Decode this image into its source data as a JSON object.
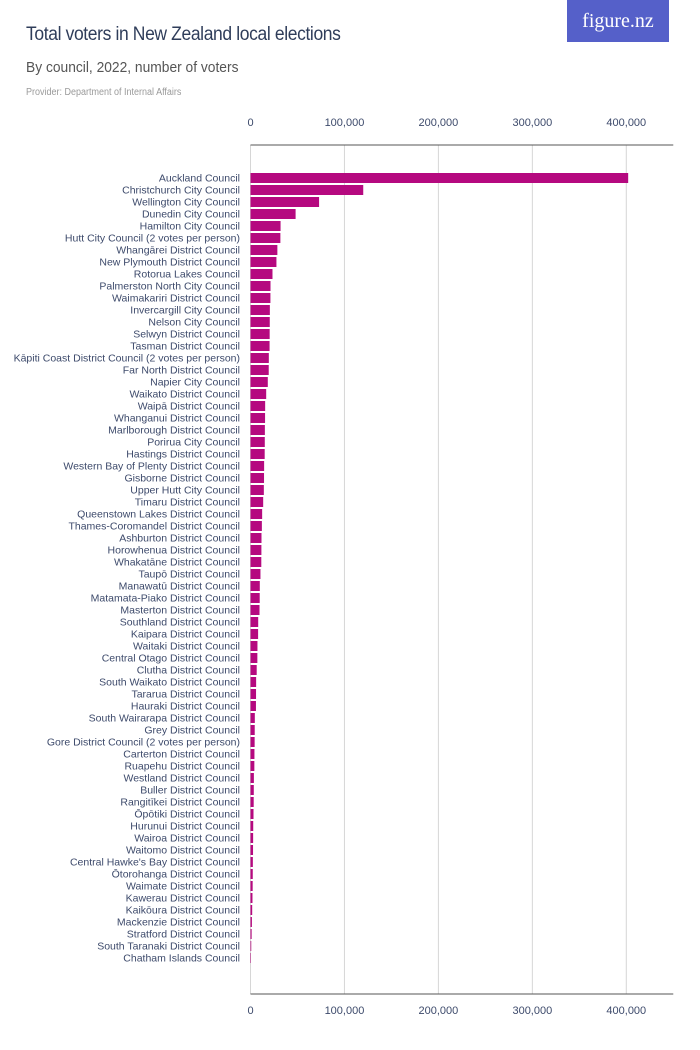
{
  "header": {
    "title": "Total voters in New Zealand local elections",
    "subtitle": "By council, 2022, number of voters",
    "provider": "Provider: Department of Internal Affairs",
    "logo": "figure.nz",
    "logo_color": "#5560c9"
  },
  "chart_data": {
    "type": "bar",
    "orientation": "horizontal",
    "title": "Total voters in New Zealand local elections",
    "subtitle": "By council, 2022, number of voters",
    "xlim": [
      0,
      450000
    ],
    "xticks": [
      0,
      100000,
      200000,
      300000,
      400000
    ],
    "xtick_labels": [
      "0",
      "100,000",
      "200,000",
      "300,000",
      "400,000"
    ],
    "grid": true,
    "bar_color": "#b5097f",
    "categories": [
      "Auckland Council",
      "Christchurch City Council",
      "Wellington City Council",
      "Dunedin City Council",
      "Hamilton City Council",
      "Hutt City Council (2 votes per person)",
      "Whangārei District Council",
      "New Plymouth District Council",
      "Rotorua Lakes Council",
      "Palmerston North City Council",
      "Waimakariri District Council",
      "Invercargill City Council",
      "Nelson City Council",
      "Selwyn District Council",
      "Tasman District Council",
      "Kāpiti Coast District Council (2 votes per person)",
      "Far North District Council",
      "Napier City Council",
      "Waikato District Council",
      "Waipā District Council",
      "Whanganui District Council",
      "Marlborough District Council",
      "Porirua City Council",
      "Hastings District Council",
      "Western Bay of Plenty District Council",
      "Gisborne District Council",
      "Upper Hutt City Council",
      "Timaru District Council",
      "Queenstown Lakes District Council",
      "Thames-Coromandel District Council",
      "Ashburton District Council",
      "Horowhenua District Council",
      "Whakatāne District Council",
      "Taupō District Council",
      "Manawatū District Council",
      "Matamata-Piako District Council",
      "Masterton District Council",
      "Southland District Council",
      "Kaipara District Council",
      "Waitaki District Council",
      "Central Otago District Council",
      "Clutha District Council",
      "South Waikato District Council",
      "Tararua District Council",
      "Hauraki District Council",
      "South Wairarapa District Council",
      "Grey District Council",
      "Gore District Council (2 votes per person)",
      "Carterton District Council",
      "Ruapehu District Council",
      "Westland District Council",
      "Buller District Council",
      "Rangitīkei District Council",
      "Ōpōtiki District Council",
      "Hurunui District Council",
      "Wairoa District Council",
      "Waitomo District Council",
      "Central Hawke's Bay District Council",
      "Ōtorohanga District Council",
      "Waimate District Council",
      "Kawerau District Council",
      "Kaikōura District Council",
      "Mackenzie District Council",
      "Stratford District Council",
      "South Taranaki District Council",
      "Chatham Islands Council"
    ],
    "values": [
      402000,
      120000,
      73000,
      48000,
      32000,
      31800,
      28600,
      27600,
      23400,
      21300,
      21200,
      20600,
      20500,
      20400,
      20300,
      19500,
      19400,
      18400,
      16700,
      15600,
      15500,
      15300,
      15200,
      15100,
      14500,
      14400,
      14200,
      13500,
      12400,
      12100,
      11700,
      11600,
      11500,
      10600,
      9900,
      9800,
      9600,
      8200,
      8100,
      7400,
      7300,
      6600,
      6000,
      5900,
      5800,
      4600,
      4500,
      4400,
      4200,
      4100,
      3600,
      3500,
      3400,
      3200,
      2900,
      2800,
      2700,
      2500,
      2400,
      2300,
      2100,
      1800,
      1500,
      1200,
      800,
      100
    ]
  }
}
